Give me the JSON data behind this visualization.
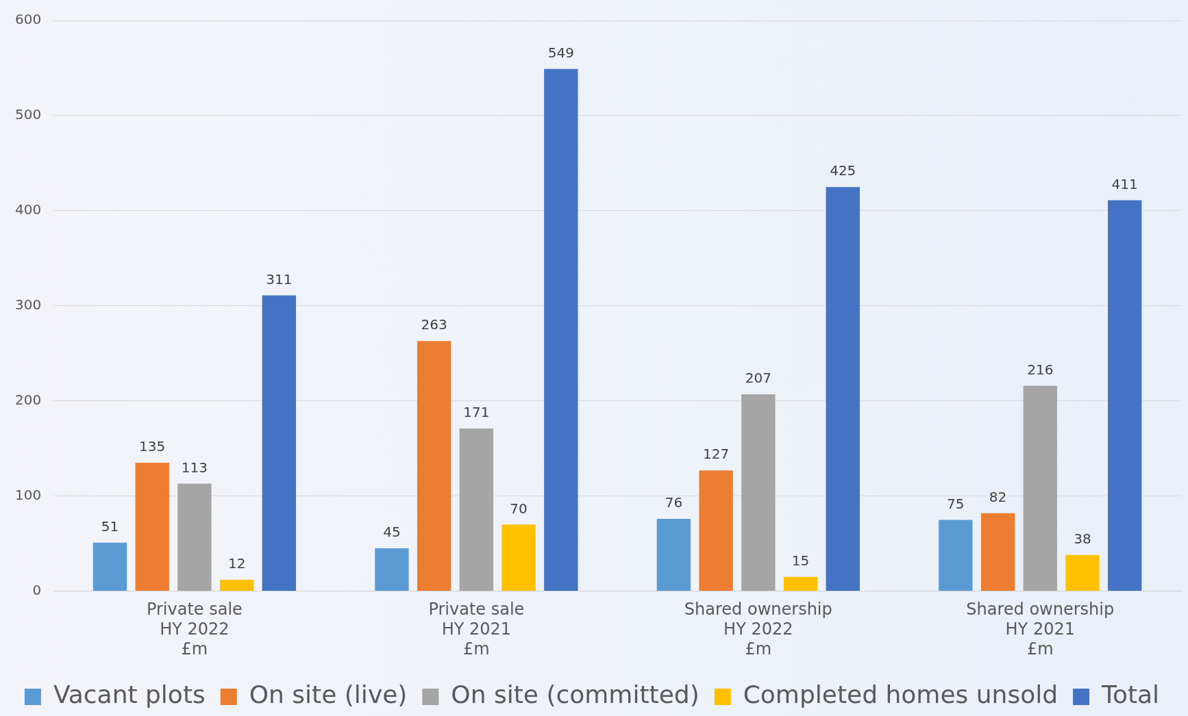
{
  "chart_data": {
    "type": "bar",
    "categories": [
      "Private sale\nHY 2022\n£m",
      "Private sale\nHY 2021\n£m",
      "Shared ownership\nHY 2022\n£m",
      "Shared ownership\nHY 2021\n£m"
    ],
    "series": [
      {
        "name": "Vacant plots",
        "color": "#5b9bd5",
        "values": [
          51,
          45,
          76,
          75
        ]
      },
      {
        "name": "On site (live)",
        "color": "#ed7d31",
        "values": [
          135,
          263,
          127,
          82
        ]
      },
      {
        "name": "On site (committed)",
        "color": "#a5a5a5",
        "values": [
          113,
          171,
          207,
          216
        ]
      },
      {
        "name": "Completed homes unsold",
        "color": "#ffc000",
        "values": [
          12,
          70,
          15,
          38
        ]
      },
      {
        "name": "Total",
        "color": "#4472c4",
        "values": [
          311,
          549,
          425,
          411
        ]
      }
    ],
    "ylim": [
      0,
      600
    ],
    "yticks": [
      0,
      100,
      200,
      300,
      400,
      500,
      600
    ],
    "grid": "y",
    "legend": "bottom",
    "data_labels": true
  }
}
